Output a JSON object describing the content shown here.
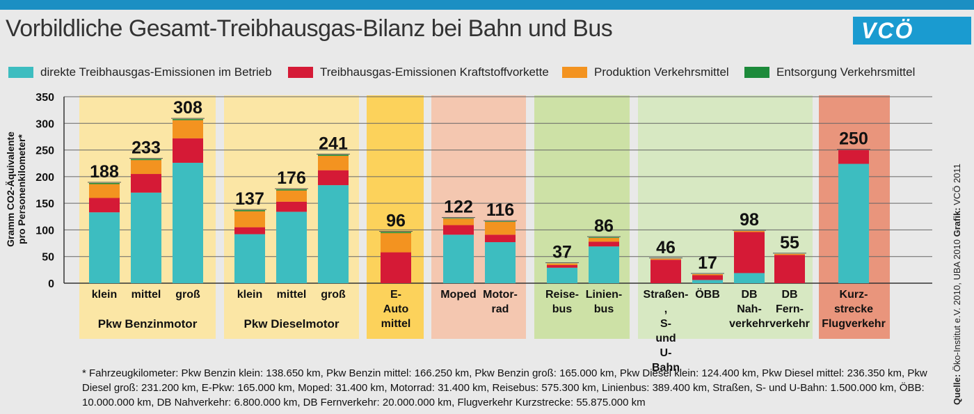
{
  "header": {
    "title": "Vorbildliche Gesamt-Treibhausgas-Bilanz bei Bahn und Bus",
    "logo": "VCÖ"
  },
  "legend": [
    {
      "label": "direkte Treibhausgas-Emissionen im Betrieb",
      "color": "#3dbdc0"
    },
    {
      "label": "Treibhausgas-Emissionen Kraftstoffvorkette",
      "color": "#d51a36"
    },
    {
      "label": "Produktion Verkehrsmittel",
      "color": "#f39320"
    },
    {
      "label": "Entsorgung Verkehrsmittel",
      "color": "#1c8a3a"
    }
  ],
  "chart_data": {
    "type": "bar",
    "stacked": true,
    "ylabel": "Gramm CO2-Äquivalente pro Personenkilometer*",
    "ylim": [
      0,
      350
    ],
    "yticks": [
      0,
      50,
      100,
      150,
      200,
      250,
      300,
      350
    ],
    "grid": true,
    "series_names": [
      "direkte Treibhausgas-Emissionen im Betrieb",
      "Treibhausgas-Emissionen Kraftstoffvorkette",
      "Produktion Verkehrsmittel",
      "Entsorgung Verkehrsmittel"
    ],
    "groups": [
      {
        "label": "Pkw Benzinmotor",
        "bg": "#fbe6a5",
        "bars": [
          {
            "label": "klein",
            "total": "188",
            "values": [
              133,
              27,
              26,
              2
            ]
          },
          {
            "label": "mittel",
            "total": "233",
            "values": [
              170,
              35,
              26,
              2
            ]
          },
          {
            "label": "groß",
            "total": "308",
            "values": [
              226,
              46,
              34,
              2
            ]
          }
        ]
      },
      {
        "label": "Pkw Dieselmotor",
        "bg": "#fbe6a5",
        "bars": [
          {
            "label": "klein",
            "total": "137",
            "values": [
              92,
              13,
              30,
              2
            ]
          },
          {
            "label": "mittel",
            "total": "176",
            "values": [
              134,
              19,
              21,
              2
            ]
          },
          {
            "label": "groß",
            "total": "241",
            "values": [
              184,
              28,
              27,
              2
            ]
          }
        ]
      },
      {
        "label": "",
        "bg": "#fcd25b",
        "bars": [
          {
            "label": "E-Auto mittel",
            "total": "96",
            "values": [
              0,
              58,
              36,
              2
            ]
          }
        ]
      },
      {
        "label": "",
        "bg": "#f4c7b0",
        "bars": [
          {
            "label": "Moped",
            "total": "122",
            "values": [
              91,
              18,
              12,
              1
            ]
          },
          {
            "label": "Motor-rad",
            "total": "116",
            "values": [
              77,
              14,
              24,
              1
            ]
          }
        ]
      },
      {
        "label": "",
        "bg": "#cde1a6",
        "bars": [
          {
            "label": "Reise-bus",
            "total": "37",
            "values": [
              29,
              5,
              3,
              0
            ]
          },
          {
            "label": "Linien-bus",
            "total": "86",
            "values": [
              69,
              9,
              7,
              1
            ]
          }
        ]
      },
      {
        "label": "",
        "bg": "#d7e8c2",
        "bars": [
          {
            "label": "Straßen-, S- und U-Bahn",
            "total": "46",
            "values": [
              0,
              44,
              2,
              0
            ]
          },
          {
            "label": "ÖBB",
            "total": "17",
            "values": [
              6,
              9,
              2,
              0
            ]
          },
          {
            "label": "DB Nah-verkehr",
            "total": "98",
            "values": [
              19,
              77,
              2,
              0
            ]
          },
          {
            "label": "DB Fern-verkehr",
            "total": "55",
            "values": [
              0,
              53,
              2,
              0
            ]
          }
        ]
      },
      {
        "label": "",
        "bg": "#e9957c",
        "bars": [
          {
            "label": "Kurz-strecke Flugverkehr",
            "total": "250",
            "values": [
              224,
              26,
              0,
              0
            ]
          }
        ]
      }
    ]
  },
  "footnote": "* Fahrzeugkilometer: Pkw Benzin klein: 138.650 km, Pkw Benzin mittel: 166.250 km, Pkw Benzin groß: 165.000 km, Pkw Diesel klein: 124.400 km, Pkw Diesel mittel: 236.350 km, Pkw Diesel groß: 231.200 km, E-Pkw: 165.000 km, Moped: 31.400 km, Motorrad: 31.400 km, Reisebus: 575.300 km, Linienbus: 389.400 km, Straßen, S- und U-Bahn: 1.500.000 km, ÖBB: 10.000.000 km, DB Nahverkehr: 6.800.000 km, DB Fernverkehr: 20.000.000 km, Flugverkehr Kurzstrecke: 55.875.000 km",
  "source": {
    "label1": "Quelle:",
    "text1": "Öko-Institut e.V. 2010, UBA 2010",
    "label2": "Grafik:",
    "text2": "VCÖ 2011"
  }
}
